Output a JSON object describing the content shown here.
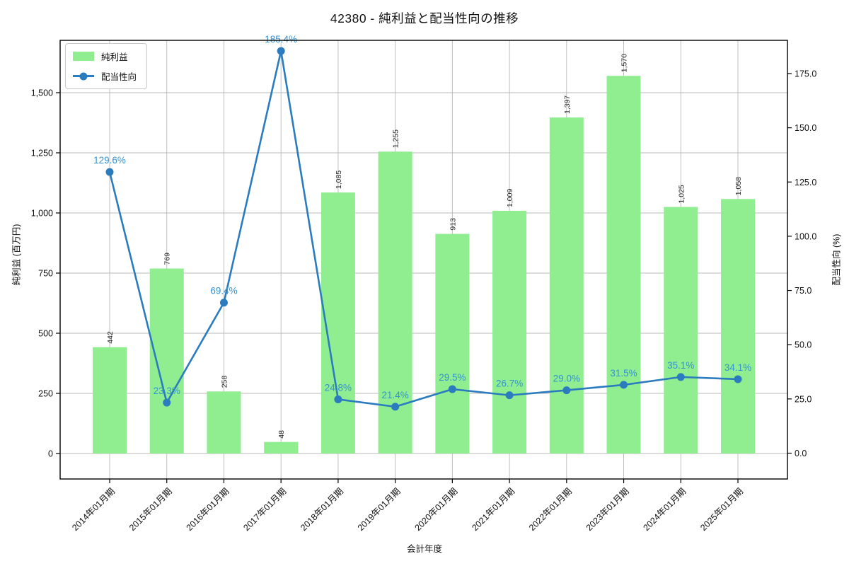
{
  "chart_data": {
    "type": "bar+line",
    "title": "42380 - 純利益と配当性向の推移",
    "xlabel": "会計年度",
    "ylabel_left": "純利益 (百万円)",
    "ylabel_right": "配当性向 (%)",
    "grid": true,
    "legend_position": "upper-left",
    "categories": [
      "2014年01月期",
      "2015年01月期",
      "2016年01月期",
      "2017年01月期",
      "2018年01月期",
      "2019年01月期",
      "2020年01月期",
      "2021年01月期",
      "2022年01月期",
      "2023年01月期",
      "2024年01月期",
      "2025年01月期"
    ],
    "series": [
      {
        "name": "純利益",
        "type": "bar",
        "axis": "left",
        "color": "#90ee90",
        "values": [
          442,
          769,
          258,
          48,
          1085,
          1255,
          913,
          1009,
          1397,
          1570,
          1025,
          1058
        ],
        "labels": [
          "442",
          "769",
          "258",
          "48",
          "1,085",
          "1,255",
          "913",
          "1,009",
          "1,397",
          "1,570",
          "1,025",
          "1,058"
        ]
      },
      {
        "name": "配当性向",
        "type": "line",
        "axis": "right",
        "color": "#2b7cbe",
        "label_color": "#3593d2",
        "values": [
          129.6,
          23.3,
          69.4,
          185.4,
          24.8,
          21.4,
          29.5,
          26.7,
          29.0,
          31.5,
          35.1,
          34.1
        ],
        "labels": [
          "129.6%",
          "23.3%",
          "69.4%",
          "185.4%",
          "24.8%",
          "21.4%",
          "29.5%",
          "26.7%",
          "29.0%",
          "31.5%",
          "35.1%",
          "34.1%"
        ]
      }
    ],
    "left_axis": {
      "ticks": [
        0,
        250,
        500,
        750,
        1000,
        1250,
        1500
      ],
      "tick_labels": [
        "0",
        "250",
        "500",
        "750",
        "1,000",
        "1,250",
        "1,500"
      ]
    },
    "right_axis": {
      "ticks": [
        0,
        25,
        50,
        75,
        100,
        125,
        150,
        175
      ],
      "tick_labels": [
        "0.0",
        "25.0",
        "50.0",
        "75.0",
        "100.0",
        "125.0",
        "150.0",
        "175.0"
      ]
    },
    "colors": {
      "grid": "#b8b8b8",
      "spine": "#000000",
      "bar_label": "#1f1f1f",
      "tick_label": "#111111"
    }
  }
}
